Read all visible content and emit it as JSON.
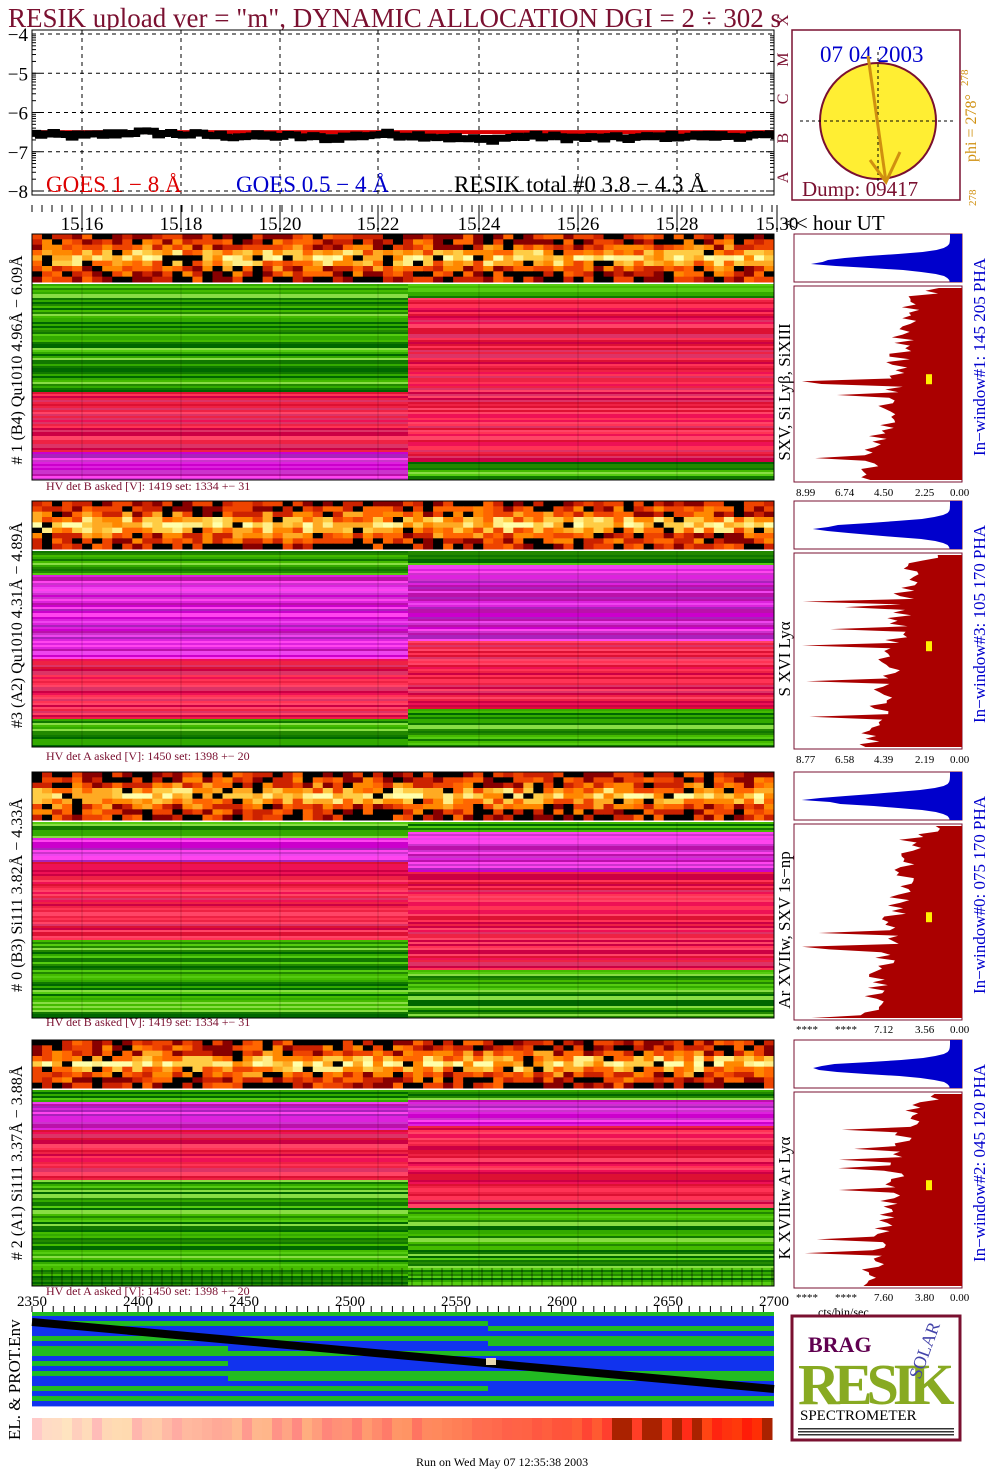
{
  "title": "RESIK upload ver = \"m\", DYNAMIC ALLOCATION  DGI =   2 ÷ 302 s",
  "goes": {
    "yticks": [
      "−4",
      "−5",
      "−6",
      "−7",
      "−8"
    ],
    "class_letters": [
      "A",
      "B",
      "C",
      "M",
      "X"
    ],
    "legend_goes18": "GOES 1 − 8 Å",
    "legend_goes054": "GOES 0.5 − 4 Å",
    "legend_resik": "RESIK total #0  3.8 − 4.3 Å",
    "time_ticks": [
      "15.16",
      "15.18",
      "15.20",
      "15.22",
      "15.24",
      "15.26",
      "15.28",
      "15.30"
    ],
    "time_unit": "<< hour UT",
    "colors": {
      "goes18": "#dd0000",
      "goes054": "#0000cc",
      "resik": "#000000"
    }
  },
  "sun": {
    "date": "07 04 2003",
    "phi_label": "phi = 278°",
    "phi_sup": "278",
    "phi_small": "278",
    "dump": "Dump: 09417"
  },
  "channels": [
    {
      "id": "ch1",
      "side_label": "# 1 (B4) Qu1010 4.96Å − 6.09Å",
      "line_label": "SXV, Si Lyβ, SiXIII",
      "hv": "HV det B asked [V]:  1419 set:  1334  +−   31",
      "pha_label": "In−window#1:  145 205 PHA",
      "pha_ticks": [
        "8.99",
        "6.74",
        "4.50",
        "2.25",
        "0.00"
      ]
    },
    {
      "id": "ch3",
      "side_label": "#3 (A2) Qu1010  4.31Å − 4.89Å",
      "line_label": "S XVI Lyα",
      "hv": "HV det A asked [V]:  1450 set:  1398  +−   20",
      "pha_label": "In−window#3:  105 170 PHA",
      "pha_ticks": [
        "8.77",
        "6.58",
        "4.39",
        "2.19",
        "0.00"
      ]
    },
    {
      "id": "ch0",
      "side_label": "# 0 (B3) Si111  3.82Å − 4.33Å",
      "line_label": "Ar XVIIw,  SXV 1s−np",
      "hv": "HV det B asked [V]:  1419 set:  1334  +−   31",
      "pha_label": "In−window#0:  075 170 PHA",
      "pha_ticks": [
        "****",
        "****",
        "7.12",
        "3.56",
        "0.00"
      ]
    },
    {
      "id": "ch2",
      "side_label": "# 2 (A1) Si111  3.37Å − 3.88Å",
      "line_label": "K XVIIIw  Ar Lyα",
      "hv": "HV det A asked [V]:  1450 set:  1398  +−   20",
      "pha_label": "In−window#2:  045 120 PHA",
      "pha_ticks": [
        "****",
        "****",
        "7.60",
        "3.80",
        "0.00"
      ]
    }
  ],
  "pha_xlabel": "cts/bin/sec",
  "env": {
    "ylabel": "EL. & PROT.Env",
    "xticks": [
      "2350",
      "2400",
      "2450",
      "2500",
      "2550",
      "2600",
      "2650",
      "2700"
    ]
  },
  "logo": {
    "bragg": "BRAG",
    "resik": "RESIK",
    "solar": "SOLAR",
    "spectrometer": "SPECTROMETER"
  },
  "footer": "Run on Wed May 07 12:35:38 2003",
  "chart_data": {
    "type": "line",
    "title": "RESIK upload ver = \"m\", DYNAMIC ALLOCATION  DGI =   2 ÷ 302 s",
    "xlabel": "<< hour UT",
    "ylabel": "",
    "xlim": [
      15.15,
      15.3
    ],
    "ylim": [
      -8,
      -4
    ],
    "x": [
      15.15,
      15.16,
      15.17,
      15.18,
      15.19,
      15.2,
      15.21,
      15.22,
      15.23,
      15.24,
      15.25,
      15.26,
      15.27,
      15.28,
      15.29,
      15.3
    ],
    "series": [
      {
        "name": "GOES 1 − 8 Å",
        "values": [
          -6.5,
          -6.5,
          -6.5,
          -6.5,
          -6.5,
          -6.5,
          -6.5,
          -6.5,
          -6.5,
          -6.5,
          -6.5,
          -6.5,
          -6.5,
          -6.5,
          -6.5,
          -6.5
        ]
      },
      {
        "name": "RESIK total #0  3.8 − 4.3 Å",
        "values": [
          -6.55,
          -6.6,
          -6.5,
          -6.55,
          -6.6,
          -6.6,
          -6.65,
          -6.55,
          -6.6,
          -6.7,
          -6.6,
          -6.65,
          -6.65,
          -6.6,
          -6.6,
          -6.6
        ]
      }
    ]
  }
}
